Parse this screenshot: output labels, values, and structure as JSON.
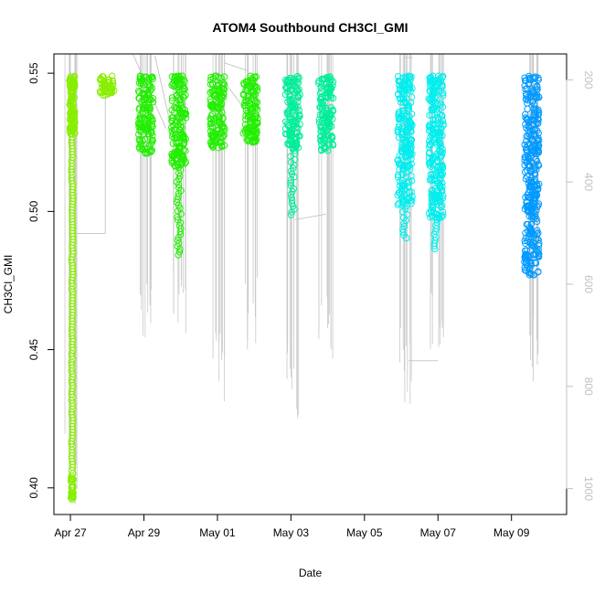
{
  "chart_data": {
    "type": "scatter",
    "title": "ATOM4 Southbound CH3Cl_GMI",
    "xlabel": "Date",
    "ylabel": "CH3Cl_GMI",
    "x_ticks": [
      "Apr 27",
      "Apr 29",
      "May 01",
      "May 03",
      "May 05",
      "May 07",
      "May 09"
    ],
    "y_ticks": [
      "0.40",
      "0.45",
      "0.50",
      "0.55"
    ],
    "y2_ticks": [
      "200",
      "400",
      "600",
      "800",
      "1000"
    ],
    "xlim_days": [
      26.8,
      40.3
    ],
    "ylim": [
      0.393,
      0.555
    ],
    "y2lim": [
      1040,
      160
    ],
    "y2_label": "",
    "grid": false,
    "legend": "none",
    "marker": "open-circle",
    "profile_line_color": "#c8c8c8",
    "colors": {
      "yellowgreen": "#88ee00",
      "green": "#22ee00",
      "seagreen": "#00ee99",
      "cyan": "#00eeee",
      "blue": "#0099ff"
    },
    "clusters": [
      {
        "name": "Apr 27 profile",
        "x": 27.05,
        "y_min": 0.396,
        "y_max": 0.549,
        "color": "yellowgreen",
        "dense_top": 0.528,
        "p_min": 1040
      },
      {
        "name": "Apr 28 segment",
        "x": 28.0,
        "y_min": 0.542,
        "y_max": 0.549,
        "color": "yellowgreen",
        "dense_top": 0.542,
        "p_min": 160
      },
      {
        "name": "Apr 29 profile",
        "x": 29.05,
        "y_min": 0.521,
        "y_max": 0.549,
        "color": "green",
        "dense_top": 0.521,
        "p_min": 720
      },
      {
        "name": "Apr 30 profile",
        "x": 29.95,
        "y_min": 0.484,
        "y_max": 0.549,
        "color": "green",
        "dense_top": 0.516,
        "p_min": 720
      },
      {
        "name": "May 01 profile",
        "x": 31.0,
        "y_min": 0.523,
        "y_max": 0.549,
        "color": "green",
        "dense_top": 0.523,
        "p_min": 840
      },
      {
        "name": "May 02 profile",
        "x": 31.9,
        "y_min": 0.525,
        "y_max": 0.549,
        "color": "green",
        "dense_top": 0.525,
        "p_min": 740
      },
      {
        "name": "May 03 profile",
        "x": 33.05,
        "y_min": 0.499,
        "y_max": 0.549,
        "color": "seagreen",
        "dense_top": 0.522,
        "p_min": 870
      },
      {
        "name": "May 04 profile",
        "x": 33.95,
        "y_min": 0.522,
        "y_max": 0.549,
        "color": "seagreen",
        "dense_top": 0.522,
        "p_min": 760
      },
      {
        "name": "May 06 profile",
        "x": 36.1,
        "y_min": 0.49,
        "y_max": 0.549,
        "color": "cyan",
        "dense_top": 0.502,
        "p_min": 840
      },
      {
        "name": "May 07 profile",
        "x": 36.95,
        "y_min": 0.486,
        "y_max": 0.549,
        "color": "cyan",
        "dense_top": 0.497,
        "p_min": 750
      },
      {
        "name": "May 09 profile",
        "x": 39.55,
        "y_min": 0.477,
        "y_max": 0.549,
        "color": "blue",
        "dense_top": 0.477,
        "p_min": 790
      }
    ]
  }
}
